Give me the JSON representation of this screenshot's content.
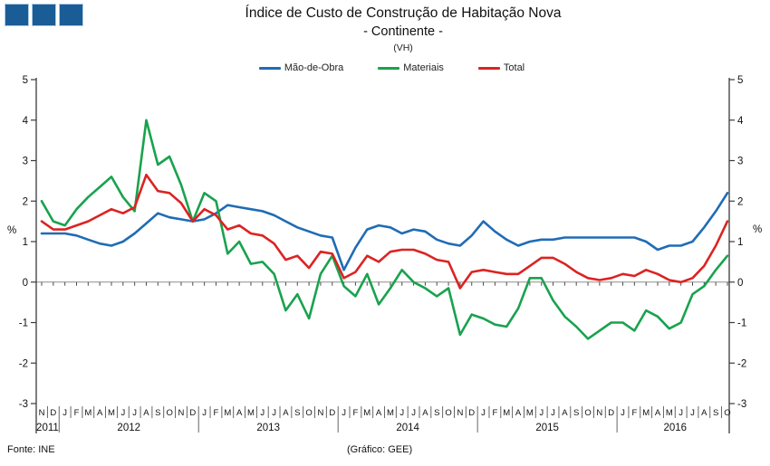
{
  "header": {
    "title_line1": "Índice de Custo de Construção de Habitação Nova",
    "title_line2": "- Continente -",
    "subtitle": "(VH)"
  },
  "logo": {
    "squares": 3,
    "fill": "#1A5C96",
    "border": "#AECBE5"
  },
  "legend": {
    "items": [
      {
        "label": "Mão-de-Obra",
        "color": "#1F6CB5"
      },
      {
        "label": "Materiais",
        "color": "#19A24E"
      },
      {
        "label": "Total",
        "color": "#DC2321"
      }
    ]
  },
  "footer": {
    "source": "Fonte: INE",
    "credit": "(Gráfico: GEE)"
  },
  "chart_data": {
    "type": "line",
    "title": "Índice de Custo de Construção de Habitação Nova - Continente - (VH)",
    "ylabel_left": "%",
    "ylabel_right": "%",
    "ylim": [
      -3,
      5
    ],
    "yticks": [
      5,
      4,
      3,
      2,
      1,
      0,
      -1,
      -2,
      -3
    ],
    "grid": "zero-line-only",
    "legend_position": "top-center",
    "x_months": [
      "N",
      "D",
      "J",
      "F",
      "M",
      "A",
      "M",
      "J",
      "J",
      "A",
      "S",
      "O",
      "N",
      "D",
      "J",
      "F",
      "M",
      "A",
      "M",
      "J",
      "J",
      "A",
      "S",
      "O",
      "N",
      "D",
      "J",
      "F",
      "M",
      "A",
      "M",
      "J",
      "J",
      "A",
      "S",
      "O",
      "N",
      "D",
      "J",
      "F",
      "M",
      "A",
      "M",
      "J",
      "J",
      "A",
      "S",
      "O",
      "N",
      "D",
      "J",
      "F",
      "M",
      "A",
      "M",
      "J",
      "J",
      "A",
      "S",
      "O"
    ],
    "years": [
      {
        "label": "2011",
        "start": 0,
        "end": 1
      },
      {
        "label": "2012",
        "start": 2,
        "end": 13
      },
      {
        "label": "2013",
        "start": 14,
        "end": 25
      },
      {
        "label": "2014",
        "start": 26,
        "end": 37
      },
      {
        "label": "2015",
        "start": 38,
        "end": 49
      },
      {
        "label": "2016",
        "start": 50,
        "end": 59
      }
    ],
    "series": [
      {
        "name": "Mão-de-Obra",
        "color": "#1F6CB5",
        "values": [
          1.2,
          1.2,
          1.2,
          1.15,
          1.05,
          0.95,
          0.9,
          1.0,
          1.2,
          1.45,
          1.7,
          1.6,
          1.55,
          1.5,
          1.55,
          1.7,
          1.9,
          1.85,
          1.8,
          1.75,
          1.65,
          1.5,
          1.35,
          1.25,
          1.15,
          1.1,
          0.3,
          0.85,
          1.3,
          1.4,
          1.35,
          1.2,
          1.3,
          1.25,
          1.05,
          0.95,
          0.9,
          1.15,
          1.5,
          1.25,
          1.05,
          0.9,
          1.0,
          1.05,
          1.05,
          1.1,
          1.1,
          1.1,
          1.1,
          1.1,
          1.1,
          1.1,
          1.0,
          0.8,
          0.9,
          0.9,
          1.0,
          1.35,
          1.75,
          2.2
        ]
      },
      {
        "name": "Materiais",
        "color": "#19A24E",
        "values": [
          2.0,
          1.5,
          1.4,
          1.8,
          2.1,
          2.35,
          2.6,
          2.1,
          1.75,
          4.0,
          2.9,
          3.1,
          2.4,
          1.5,
          2.2,
          2.0,
          0.7,
          1.0,
          0.45,
          0.5,
          0.2,
          -0.7,
          -0.3,
          -0.9,
          0.2,
          0.65,
          -0.1,
          -0.35,
          0.2,
          -0.55,
          -0.15,
          0.3,
          0.0,
          -0.15,
          -0.35,
          -0.15,
          -1.3,
          -0.8,
          -0.9,
          -1.05,
          -1.1,
          -0.65,
          0.1,
          0.1,
          -0.45,
          -0.85,
          -1.1,
          -1.4,
          -1.2,
          -1.0,
          -1.0,
          -1.2,
          -0.7,
          -0.85,
          -1.15,
          -1.0,
          -0.3,
          -0.1,
          0.3,
          0.65
        ]
      },
      {
        "name": "Total",
        "color": "#DC2321",
        "values": [
          1.5,
          1.3,
          1.3,
          1.4,
          1.5,
          1.65,
          1.8,
          1.7,
          1.85,
          2.65,
          2.25,
          2.2,
          1.95,
          1.5,
          1.8,
          1.65,
          1.3,
          1.4,
          1.2,
          1.15,
          0.95,
          0.55,
          0.65,
          0.35,
          0.75,
          0.7,
          0.1,
          0.25,
          0.65,
          0.5,
          0.75,
          0.8,
          0.8,
          0.7,
          0.55,
          0.5,
          -0.15,
          0.25,
          0.3,
          0.25,
          0.2,
          0.2,
          0.4,
          0.6,
          0.6,
          0.45,
          0.25,
          0.1,
          0.05,
          0.1,
          0.2,
          0.15,
          0.3,
          0.2,
          0.05,
          0.0,
          0.1,
          0.4,
          0.9,
          1.5
        ]
      }
    ]
  }
}
